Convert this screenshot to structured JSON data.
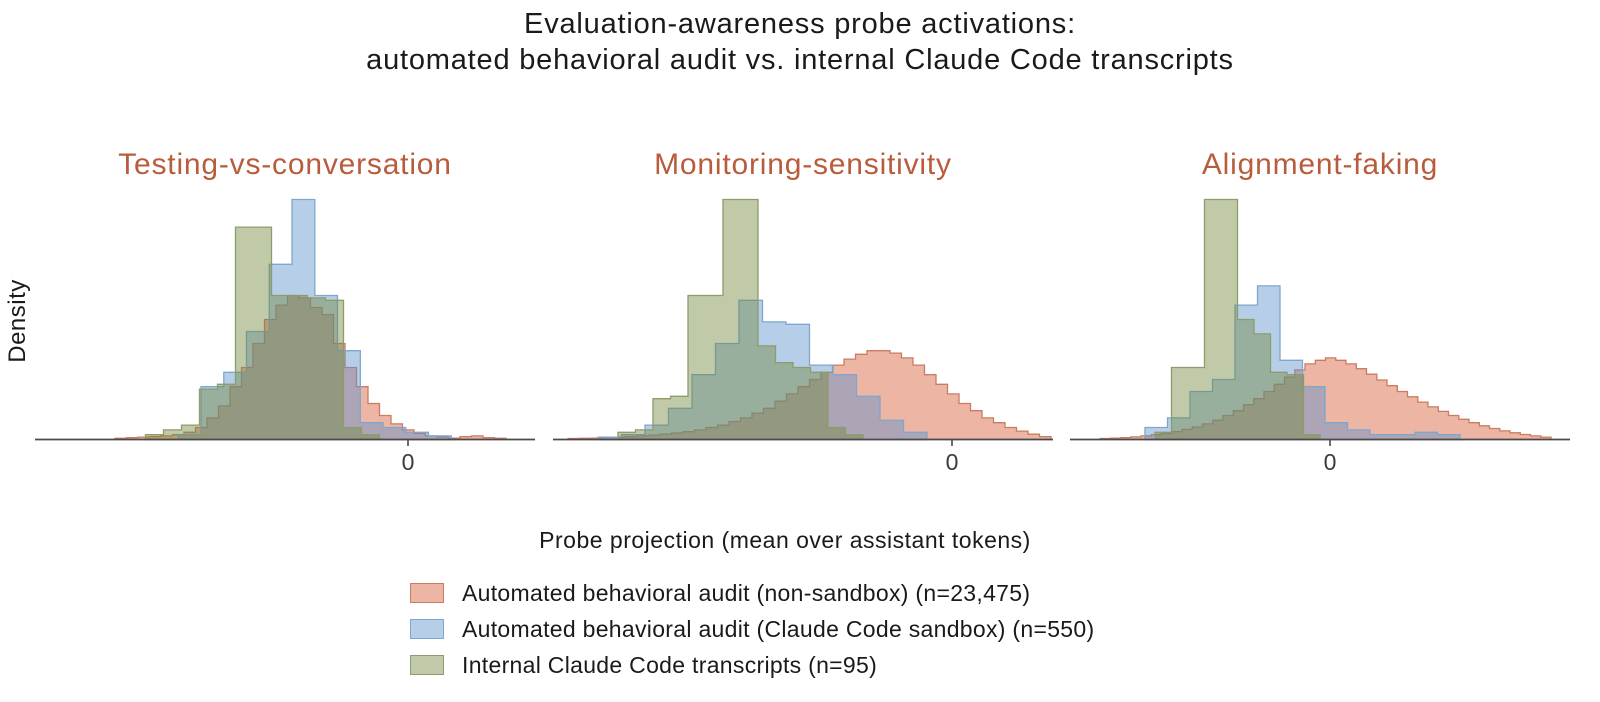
{
  "title": {
    "line1": "Evaluation-awareness probe activations:",
    "line2": "automated behavioral audit vs. internal Claude Code transcripts"
  },
  "ylabel": "Density",
  "xlabel": "Probe projection (mean over assistant tokens)",
  "colors": {
    "panel_title": "#B85C3C",
    "axis": "#4a4a4a",
    "tick_label": "#3a3a3a",
    "text": "#1a1a1a",
    "salmon_fill": "rgba(215,92,52,0.45)",
    "salmon_stroke": "#C97C61",
    "blue_fill": "rgba(95,147,207,0.45)",
    "blue_stroke": "#7FA6CE",
    "green_fill": "rgba(115,138,64,0.45)",
    "green_stroke": "#8C9C6A"
  },
  "legend": [
    {
      "series": "salmon",
      "label": "Automated behavioral audit (non-sandbox) (n=23,475)"
    },
    {
      "series": "blue",
      "label": "Automated behavioral audit (Claude Code sandbox) (n=550)"
    },
    {
      "series": "green",
      "label": "Internal Claude Code transcripts (n=95)"
    }
  ],
  "chart_data": {
    "type": "histogram",
    "note": "Three overlaid density histograms per panel; x in axis-fraction units (0-1), heights relative to panel max density (0-1); zero_u marks the x-position of the 0 tick.",
    "panels": [
      {
        "title": "Testing-vs-conversation",
        "zero_label": "0",
        "zero_u": 0.746,
        "series": [
          {
            "name": "Automated behavioral audit (non-sandbox)",
            "color": "salmon",
            "start": 0.16,
            "binw": 0.023,
            "heights": [
              0.005,
              0.008,
              0.01,
              0.012,
              0.015,
              0.02,
              0.03,
              0.05,
              0.09,
              0.14,
              0.22,
              0.3,
              0.4,
              0.5,
              0.56,
              0.6,
              0.59,
              0.55,
              0.52,
              0.4,
              0.3,
              0.22,
              0.15,
              0.1,
              0.065,
              0.04,
              0.025,
              0.015,
              0.01,
              0.006,
              0.012,
              0.015,
              0.008,
              0.005
            ]
          },
          {
            "name": "Automated behavioral audit (Claude Code sandbox)",
            "color": "blue",
            "start": 0.2865,
            "binw": 0.0455,
            "heights": [
              0.02,
              0.22,
              0.28,
              0.45,
              0.73,
              1.0,
              0.6,
              0.37,
              0.07,
              0.05,
              0.03,
              0.015
            ]
          },
          {
            "name": "Internal Claude Code transcripts",
            "color": "green",
            "start": 0.221,
            "binw": 0.036,
            "heights": [
              0.02,
              0.04,
              0.06,
              0.21,
              0.23,
              0.885,
              0.885,
              0.6,
              0.6,
              0.59,
              0.58,
              0.05,
              0.02
            ]
          }
        ]
      },
      {
        "title": "Monitoring-sensitivity",
        "zero_label": "0",
        "zero_u": 0.798,
        "series": [
          {
            "name": "Automated behavioral audit (non-sandbox)",
            "color": "salmon",
            "start": 0.03,
            "binw": 0.023,
            "heights": [
              0.004,
              0.005,
              0.006,
              0.008,
              0.01,
              0.012,
              0.015,
              0.018,
              0.022,
              0.027,
              0.033,
              0.04,
              0.05,
              0.06,
              0.075,
              0.09,
              0.11,
              0.13,
              0.16,
              0.19,
              0.22,
              0.25,
              0.28,
              0.31,
              0.335,
              0.355,
              0.37,
              0.37,
              0.36,
              0.34,
              0.31,
              0.27,
              0.23,
              0.19,
              0.15,
              0.12,
              0.09,
              0.07,
              0.05,
              0.035,
              0.022,
              0.012
            ]
          },
          {
            "name": "Automated behavioral audit (Claude Code sandbox)",
            "color": "blue",
            "start": 0.09,
            "binw": 0.047,
            "heights": [
              0.01,
              0.02,
              0.06,
              0.13,
              0.27,
              0.4,
              0.58,
              0.49,
              0.48,
              0.31,
              0.27,
              0.18,
              0.08,
              0.03
            ]
          },
          {
            "name": "Internal Claude Code transcripts",
            "color": "green",
            "start": 0.13,
            "binw": 0.035,
            "heights": [
              0.03,
              0.04,
              0.17,
              0.18,
              0.6,
              0.6,
              1.0,
              1.0,
              0.39,
              0.32,
              0.3,
              0.28,
              0.05,
              0.02
            ]
          }
        ]
      },
      {
        "title": "Alignment-faking",
        "zero_label": "0",
        "zero_u": 0.52,
        "series": [
          {
            "name": "Automated behavioral audit (non-sandbox)",
            "color": "salmon",
            "start": 0.06,
            "binw": 0.0205,
            "heights": [
              0.004,
              0.006,
              0.008,
              0.011,
              0.015,
              0.02,
              0.026,
              0.033,
              0.042,
              0.052,
              0.065,
              0.08,
              0.1,
              0.12,
              0.145,
              0.17,
              0.2,
              0.23,
              0.26,
              0.29,
              0.315,
              0.33,
              0.34,
              0.33,
              0.315,
              0.295,
              0.272,
              0.248,
              0.224,
              0.2,
              0.178,
              0.156,
              0.136,
              0.117,
              0.1,
              0.084,
              0.07,
              0.057,
              0.046,
              0.036,
              0.028,
              0.021,
              0.015,
              0.01
            ]
          },
          {
            "name": "Automated behavioral audit (Claude Code sandbox)",
            "color": "blue",
            "start": 0.15,
            "binw": 0.045,
            "heights": [
              0.05,
              0.09,
              0.2,
              0.25,
              0.56,
              0.64,
              0.33,
              0.22,
              0.07,
              0.04,
              0.02,
              0.02,
              0.03,
              0.02
            ]
          },
          {
            "name": "Internal Claude Code transcripts",
            "color": "green",
            "start": 0.17,
            "binw": 0.033,
            "heights": [
              0.03,
              0.3,
              0.3,
              1.0,
              1.0,
              0.5,
              0.44,
              0.28,
              0.27,
              0.02
            ]
          }
        ]
      }
    ],
    "legend_position": "bottom",
    "grid": false,
    "ylim_note": "y axis unlabeled (density), only a 0 tick shown on each x axis"
  }
}
